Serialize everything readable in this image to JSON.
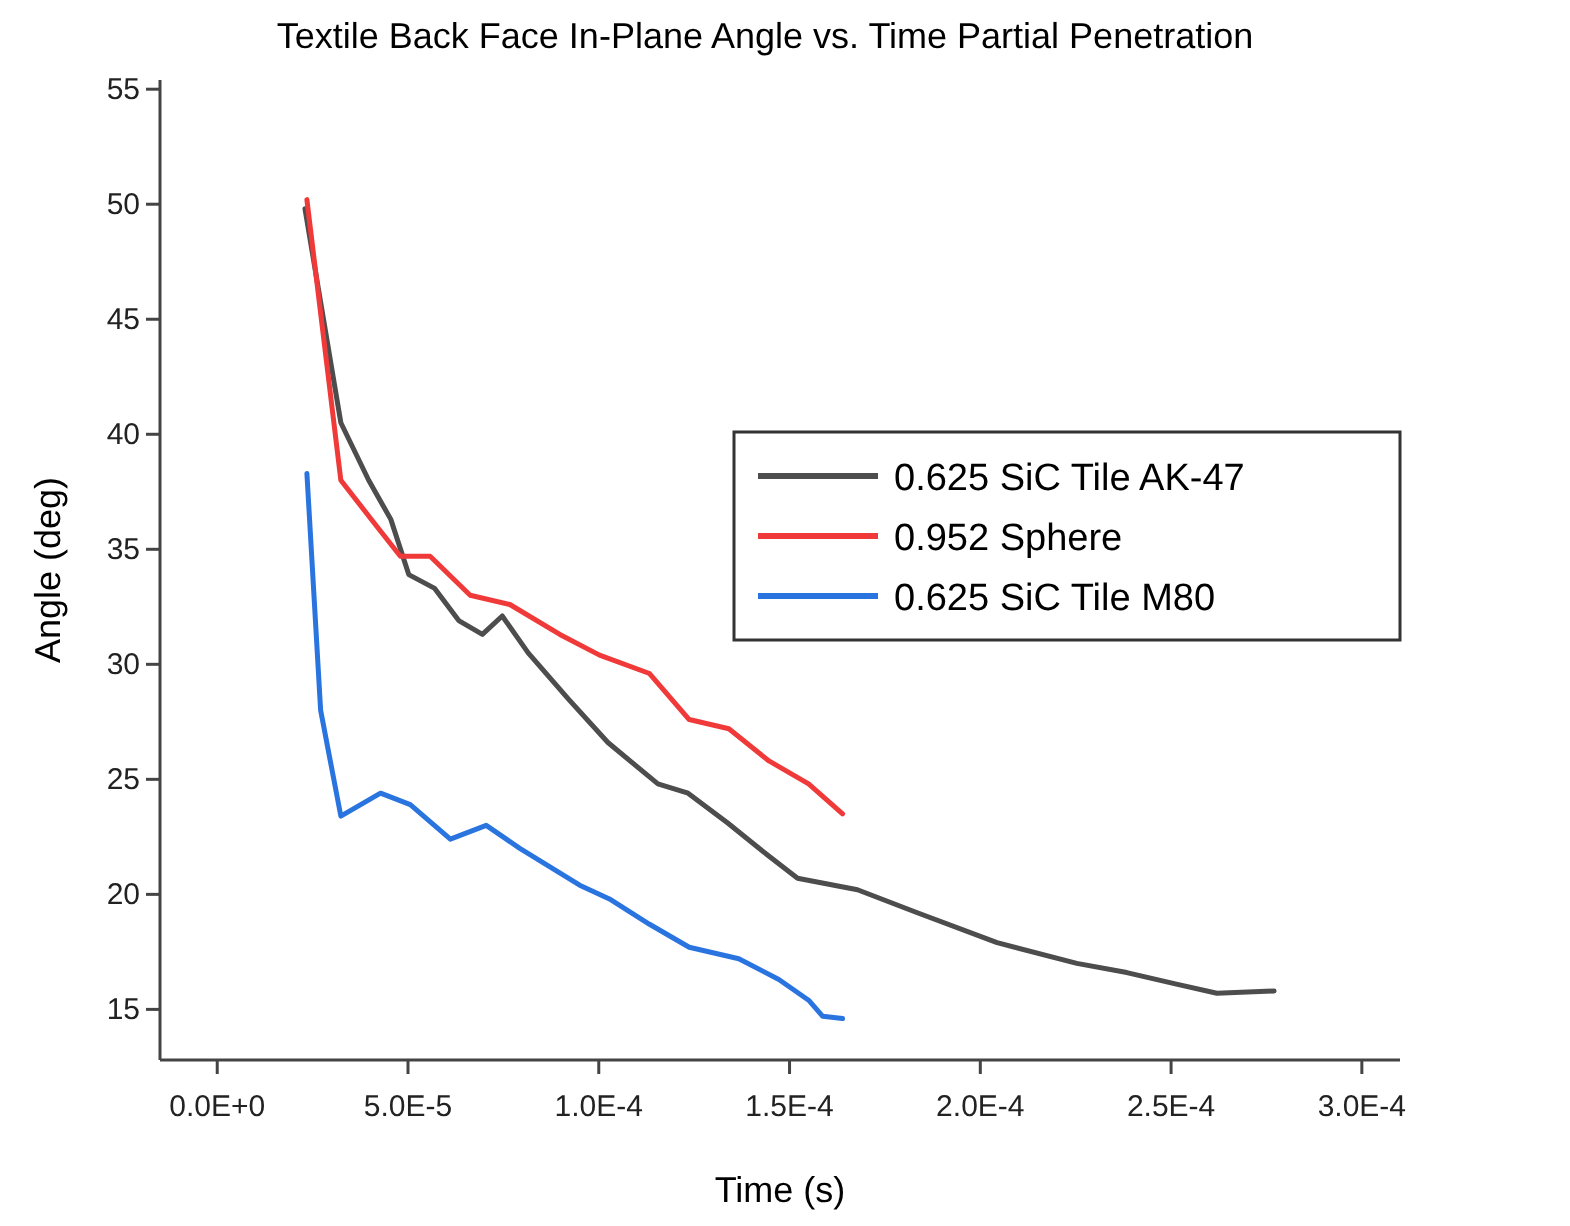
{
  "chart_data": {
    "type": "line",
    "title": "Textile Back Face In-Plane Angle  vs. Time Partial Penetration",
    "xlabel": "Time (s)",
    "ylabel": "Angle (deg)",
    "xlim": [
      -1.5e-05,
      0.00031
    ],
    "xticks": [
      {
        "value": 0,
        "label": "0.0E+0"
      },
      {
        "value": 5e-05,
        "label": "5.0E-5"
      },
      {
        "value": 0.0001,
        "label": "1.0E-4"
      },
      {
        "value": 0.00015,
        "label": "1.5E-4"
      },
      {
        "value": 0.0002,
        "label": "2.0E-4"
      },
      {
        "value": 0.00025,
        "label": "2.5E-4"
      },
      {
        "value": 0.0003,
        "label": "3.0E-4"
      }
    ],
    "ylim": [
      12.8,
      55.4
    ],
    "yticks": [
      15,
      20,
      25,
      30,
      35,
      40,
      45,
      50,
      55
    ],
    "grid": false,
    "legend": "right",
    "line_style": "solid",
    "marker": "none",
    "series": [
      {
        "name": "0.625 SiC Tile AK-47",
        "color": "#4d4d4d",
        "x": [
          2.3e-05,
          3.24e-05,
          3.97e-05,
          4.55e-05,
          5.02e-05,
          5.7e-05,
          6.33e-05,
          6.95e-05,
          7.47e-05,
          8.15e-05,
          9.2e-05,
          0.0001024,
          0.0001155,
          0.0001234,
          0.0001338,
          0.0001443,
          0.0001521,
          0.0001678,
          0.0001835,
          0.0002044,
          0.0002253,
          0.0002384,
          0.0002514,
          0.000262,
          0.000277
        ],
        "values": [
          49.8,
          40.5,
          38.0,
          36.3,
          33.9,
          33.3,
          31.9,
          31.3,
          32.1,
          30.5,
          28.5,
          26.6,
          24.8,
          24.4,
          23.1,
          21.7,
          20.7,
          20.2,
          19.2,
          17.9,
          17.0,
          16.6,
          16.1,
          15.7,
          15.8
        ]
      },
      {
        "name": "0.952 Sphere",
        "color": "#f03a3a",
        "x": [
          2.35e-05,
          3.24e-05,
          4.18e-05,
          4.8e-05,
          5.58e-05,
          6.63e-05,
          7.67e-05,
          8.98e-05,
          0.0001002,
          0.0001133,
          0.0001237,
          0.0001341,
          0.0001446,
          0.000155,
          0.0001639
        ],
        "values": [
          50.2,
          38.0,
          36.0,
          34.7,
          34.7,
          33.0,
          32.6,
          31.3,
          30.4,
          29.6,
          27.6,
          27.2,
          25.8,
          24.8,
          23.5
        ]
      },
      {
        "name": "0.625 SiC Tile M80",
        "color": "#2a74e0",
        "x": [
          2.35e-05,
          2.71e-05,
          3.24e-05,
          4.28e-05,
          5.06e-05,
          6.11e-05,
          7.05e-05,
          7.93e-05,
          9.5e-05,
          0.0001028,
          0.0001133,
          0.0001237,
          0.0001367,
          0.0001472,
          0.000155,
          0.0001587,
          0.0001639
        ],
        "values": [
          38.3,
          28.0,
          23.4,
          24.4,
          23.9,
          22.4,
          23.0,
          22.0,
          20.4,
          19.8,
          18.7,
          17.7,
          17.2,
          16.3,
          15.4,
          14.7,
          14.6
        ]
      }
    ]
  }
}
